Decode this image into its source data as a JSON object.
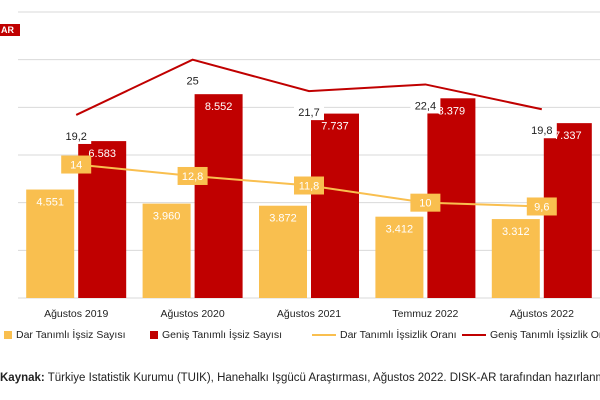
{
  "logo_text": "AR",
  "source": {
    "label": "Kaynak:",
    "text": " Türkiye İstatistik Kurumu (TÜİK), Hanehalkı İşgücü Araştırması, Ağustos 2022. DİSK-AR tarafından hazırlanmıştır."
  },
  "colors": {
    "bar_dar": "#F9BF4F",
    "bar_genis": "#C00000",
    "line_dar": "#F9BF4F",
    "line_genis": "#C00000",
    "grid": "#D9D9D9",
    "label_text": "#222222"
  },
  "chart_data": {
    "type": "bar",
    "categories": [
      "Ağustos 2019",
      "Ağustos 2020",
      "Ağustos 2021",
      "Temmuz 2022",
      "Ağustos 2022"
    ],
    "series": [
      {
        "name": "Dar Tanımlı İşsiz Sayısı",
        "kind": "bar",
        "axis": "left",
        "values": [
          4551,
          3960,
          3872,
          3412,
          3312
        ],
        "labels": [
          "4.551",
          "3.960",
          "3.872",
          "3.412",
          "3.312"
        ]
      },
      {
        "name": "Geniş Tanımlı İşsiz Sayısı",
        "kind": "bar",
        "axis": "left",
        "values": [
          6583,
          8552,
          7737,
          8379,
          7337
        ],
        "labels": [
          "6.583",
          "8.552",
          "7.737",
          "8.379",
          "7.337"
        ]
      },
      {
        "name": "Dar Tanımlı İşsizlik Oranı",
        "kind": "line",
        "axis": "right",
        "values": [
          14,
          12.8,
          11.8,
          10,
          9.6
        ],
        "labels": [
          "14",
          "12,8",
          "11,8",
          "10",
          "9,6"
        ]
      },
      {
        "name": "Geniş Tanımlı İşsizlik Oranı",
        "kind": "line",
        "axis": "right",
        "values": [
          19.2,
          25,
          21.7,
          22.4,
          19.8
        ],
        "labels": [
          "19,2",
          "25",
          "21,7",
          "22,4",
          "19,8"
        ]
      }
    ],
    "ylim_left": [
      0,
      12000
    ],
    "ylim_right": [
      0,
      30
    ],
    "grid": true,
    "legend": "bottom"
  }
}
